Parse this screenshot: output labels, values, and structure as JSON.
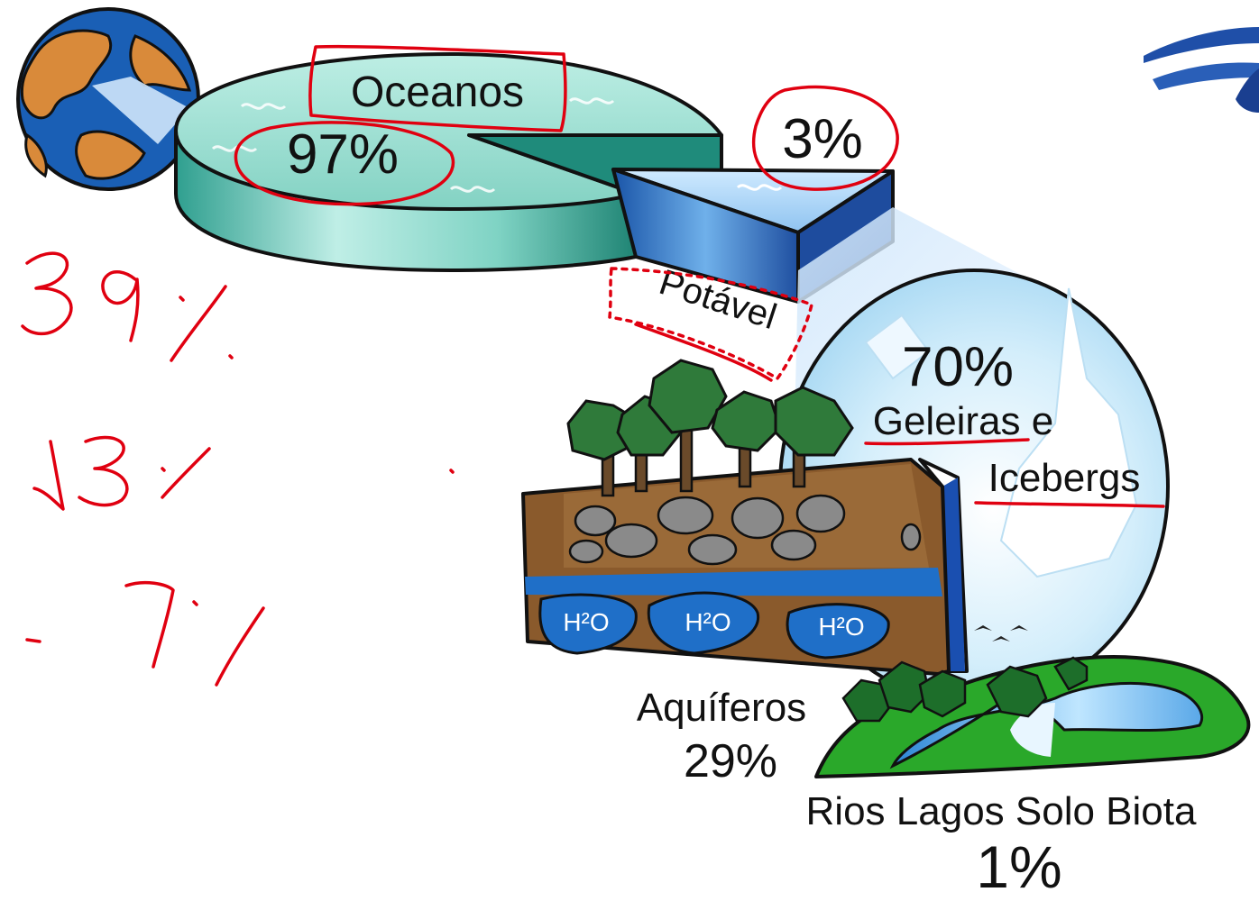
{
  "pie": {
    "oceans_label": "Oceanos",
    "oceans_value": "97%",
    "fresh_value": "3%",
    "fresh_label": "Potável"
  },
  "glaciers": {
    "value": "70%",
    "label_line1": "Geleiras e",
    "label_line2": "Icebergs"
  },
  "aquifers": {
    "label": "Aquíferos",
    "value": "29%",
    "water_tags": [
      "H²O",
      "H²O",
      "H²O"
    ]
  },
  "surface": {
    "label": "Rios Lagos Solo Biota",
    "value": "1%"
  },
  "chart_data": {
    "type": "pie",
    "slices": [
      {
        "label": "Oceanos",
        "value": 97
      },
      {
        "label": "Potável",
        "value": 3
      }
    ],
    "breakdown_of_potavel": [
      {
        "label": "Geleiras e Icebergs",
        "value": 70
      },
      {
        "label": "Aquíferos",
        "value": 29
      },
      {
        "label": "Rios Lagos Solo Biota",
        "value": 1
      }
    ]
  },
  "colors": {
    "ocean": "#5fc0b0",
    "fresh": "#3a78c8",
    "soil": "#8a5a2c",
    "water": "#1e6fbf",
    "grass": "#2aa82a",
    "annotation": "#e00010"
  }
}
